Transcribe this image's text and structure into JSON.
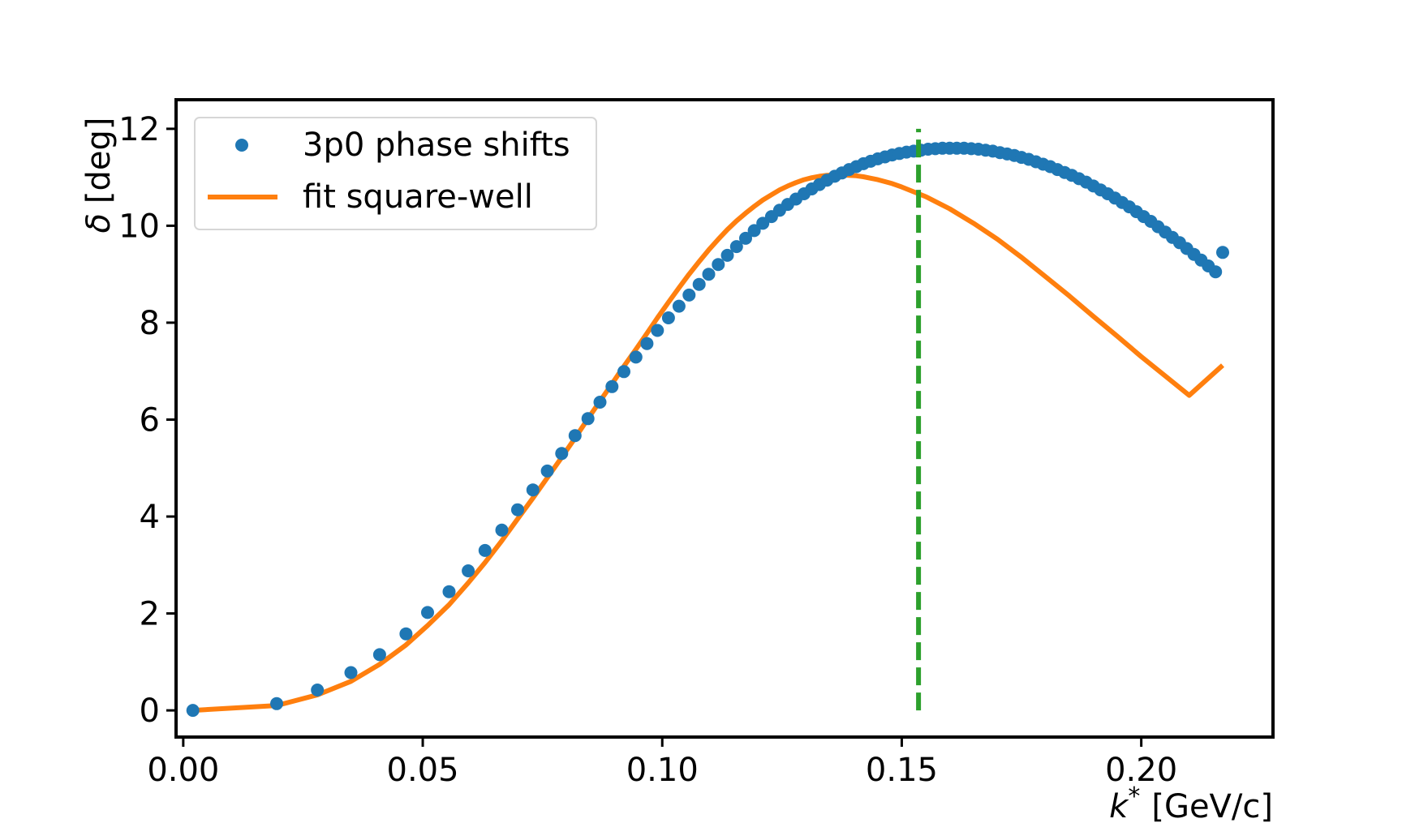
{
  "chart_data": {
    "type": "scatter",
    "title": "",
    "xlabel_var": "k",
    "xlabel_sup": "*",
    "xlabel_unit": "[GeV/c]",
    "ylabel_var": "δ",
    "ylabel_unit": "[deg]",
    "xlim": [
      -0.0015,
      0.2275
    ],
    "ylim": [
      -0.55,
      12.6
    ],
    "xticks": [
      0.0,
      0.05,
      0.1,
      0.15,
      0.2
    ],
    "xtick_labels": [
      "0.00",
      "0.05",
      "0.10",
      "0.15",
      "0.20"
    ],
    "yticks": [
      0,
      2,
      4,
      6,
      8,
      10,
      12
    ],
    "ytick_labels": [
      "0",
      "2",
      "4",
      "6",
      "8",
      "10",
      "12"
    ],
    "legend_position": "top-left",
    "series": [
      {
        "name": "3p0 phase shifts",
        "kind": "scatter",
        "color": "#1f77b4",
        "x": [
          0.002,
          0.0195,
          0.028,
          0.035,
          0.041,
          0.0465,
          0.051,
          0.0555,
          0.0595,
          0.063,
          0.0665,
          0.0698,
          0.073,
          0.076,
          0.079,
          0.0818,
          0.0845,
          0.087,
          0.0895,
          0.092,
          0.0945,
          0.0968,
          0.099,
          0.1013,
          0.1035,
          0.1056,
          0.1077,
          0.1097,
          0.1117,
          0.1136,
          0.1155,
          0.1174,
          0.1192,
          0.121,
          0.1228,
          0.1245,
          0.1262,
          0.1279,
          0.1296,
          0.1312,
          0.1328,
          0.1344,
          0.136,
          0.1375,
          0.139,
          0.1405,
          0.142,
          0.1435,
          0.145,
          0.1465,
          0.148,
          0.1495,
          0.151,
          0.1525,
          0.154,
          0.1555,
          0.157,
          0.1585,
          0.16,
          0.1615,
          0.163,
          0.1645,
          0.166,
          0.1675,
          0.169,
          0.1705,
          0.172,
          0.1735,
          0.175,
          0.1765,
          0.178,
          0.1795,
          0.181,
          0.1825,
          0.184,
          0.1855,
          0.187,
          0.1885,
          0.19,
          0.1915,
          0.193,
          0.1945,
          0.196,
          0.1975,
          0.199,
          0.2005,
          0.202,
          0.2035,
          0.205,
          0.2065,
          0.208,
          0.2095,
          0.211,
          0.2125,
          0.214,
          0.2155,
          0.217
        ],
        "y": [
          0.0,
          0.14,
          0.42,
          0.78,
          1.15,
          1.58,
          2.02,
          2.45,
          2.88,
          3.3,
          3.72,
          4.14,
          4.55,
          4.94,
          5.3,
          5.67,
          6.02,
          6.36,
          6.68,
          6.99,
          7.29,
          7.57,
          7.84,
          8.1,
          8.34,
          8.57,
          8.79,
          9.0,
          9.2,
          9.39,
          9.57,
          9.74,
          9.9,
          10.05,
          10.19,
          10.32,
          10.44,
          10.55,
          10.66,
          10.76,
          10.85,
          10.94,
          11.02,
          11.09,
          11.16,
          11.22,
          11.28,
          11.33,
          11.38,
          11.42,
          11.46,
          11.49,
          11.52,
          11.54,
          11.56,
          11.58,
          11.59,
          11.6,
          11.6,
          11.6,
          11.6,
          11.59,
          11.58,
          11.56,
          11.54,
          11.51,
          11.48,
          11.45,
          11.41,
          11.37,
          11.32,
          11.27,
          11.22,
          11.16,
          11.1,
          11.04,
          10.97,
          10.9,
          10.82,
          10.74,
          10.66,
          10.57,
          10.48,
          10.39,
          10.29,
          10.19,
          10.09,
          9.98,
          9.87,
          9.76,
          9.65,
          9.53,
          9.41,
          9.29,
          9.17,
          9.05,
          9.45
        ]
      },
      {
        "name": "fit square-well",
        "kind": "line",
        "color": "#ff7f0e",
        "x": [
          0.002,
          0.0195,
          0.028,
          0.035,
          0.041,
          0.0465,
          0.051,
          0.0555,
          0.0595,
          0.063,
          0.0665,
          0.0698,
          0.073,
          0.076,
          0.079,
          0.0818,
          0.0845,
          0.087,
          0.0895,
          0.092,
          0.0945,
          0.0968,
          0.099,
          0.1013,
          0.1035,
          0.1056,
          0.1077,
          0.1097,
          0.1117,
          0.1136,
          0.1155,
          0.1174,
          0.1192,
          0.121,
          0.1228,
          0.1245,
          0.1262,
          0.1279,
          0.1296,
          0.1312,
          0.1328,
          0.1344,
          0.136,
          0.1375,
          0.139,
          0.1405,
          0.142,
          0.1435,
          0.145,
          0.1465,
          0.148,
          0.15,
          0.155,
          0.16,
          0.165,
          0.17,
          0.175,
          0.18,
          0.185,
          0.19,
          0.195,
          0.2,
          0.205,
          0.21,
          0.217
        ],
        "y": [
          0.0,
          0.1,
          0.32,
          0.6,
          0.95,
          1.35,
          1.75,
          2.18,
          2.63,
          3.05,
          3.5,
          3.95,
          4.38,
          4.8,
          5.22,
          5.62,
          6.02,
          6.38,
          6.74,
          7.1,
          7.45,
          7.78,
          8.1,
          8.42,
          8.72,
          9.0,
          9.26,
          9.5,
          9.72,
          9.92,
          10.1,
          10.26,
          10.4,
          10.53,
          10.64,
          10.74,
          10.82,
          10.89,
          10.95,
          10.99,
          11.02,
          11.04,
          11.05,
          11.05,
          11.04,
          11.03,
          11.01,
          10.98,
          10.95,
          10.91,
          10.87,
          10.8,
          10.6,
          10.35,
          10.05,
          9.72,
          9.35,
          8.95,
          8.55,
          8.13,
          7.72,
          7.3,
          6.9,
          6.5,
          7.12
        ]
      },
      {
        "name": "",
        "kind": "vline",
        "color": "#2ca02c",
        "x": 0.1535,
        "y_range": [
          0,
          12
        ]
      }
    ]
  }
}
